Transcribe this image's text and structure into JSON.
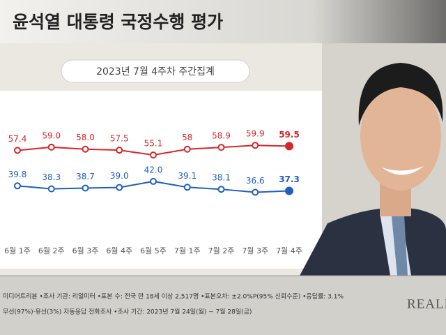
{
  "chart_data": {
    "type": "line",
    "title": "윤석열 대통령 국정수행 평가",
    "subtitle": "2023년 7월 4주차 주간집계",
    "categories": [
      "6월 1주",
      "6월 2주",
      "6월 3주",
      "6월 4주",
      "6월 5주",
      "7월 1주",
      "7월 2주",
      "7월 3주",
      "7월 4주"
    ],
    "ylim": [
      16,
      87
    ],
    "series": [
      {
        "color": "#d7262b",
        "values": [
          57.4,
          59.0,
          58.0,
          57.5,
          55.1,
          58,
          58.9,
          59.9,
          59.5
        ],
        "value_labels": [
          "57.4",
          "59.0",
          "58.0",
          "57.5",
          "55.1",
          "58",
          "58.9",
          "59.9",
          "59.5"
        ]
      },
      {
        "color": "#1f5fbf",
        "values": [
          39.8,
          38.3,
          38.7,
          39.0,
          42.0,
          39.1,
          38.1,
          36.6,
          37.3
        ],
        "value_labels": [
          "39.8",
          "38.3",
          "38.7",
          "39.0",
          "42.0",
          "39.1",
          "38.1",
          "36.6",
          "37.3"
        ]
      }
    ],
    "source_lines": [
      "미디어트리뷴 •조사 기관: 리얼미터 •표본 수: 전국 만 18세 이상 2,517명 •표본오차: ±2.0%P(95% 신뢰수준) •응답률: 3.1%",
      "무선(97%)·유선(3%) 자동응답 전화조사 •조사 기간: 2023년 7월 24일(월) ~ 7월 28일(금)"
    ],
    "brand": "REALM"
  }
}
